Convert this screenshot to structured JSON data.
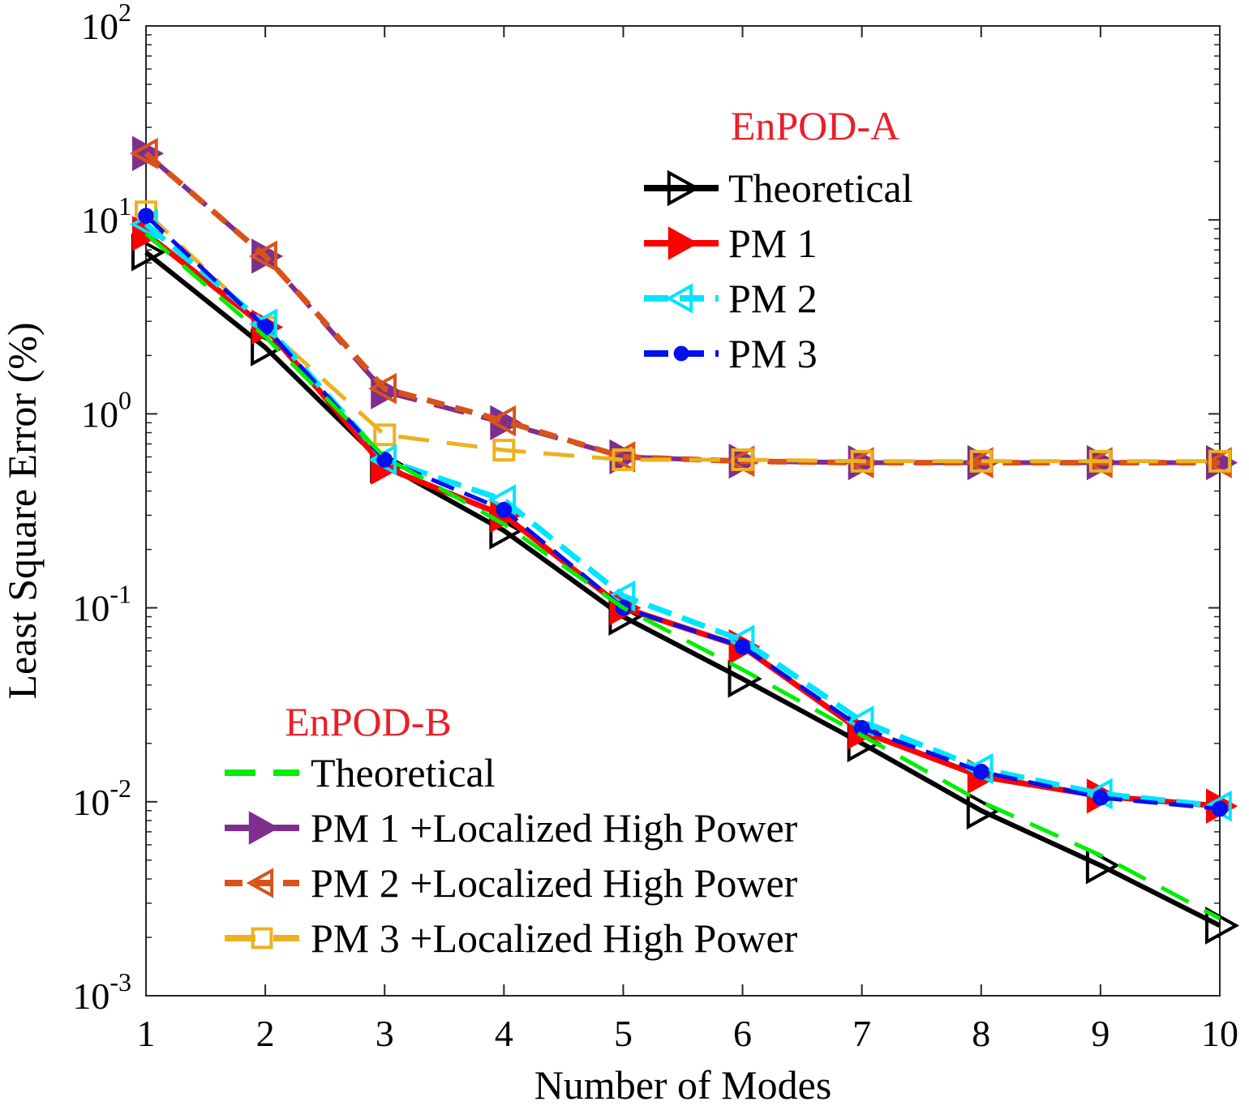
{
  "chart_data": {
    "type": "line",
    "xlabel": "Number of Modes",
    "ylabel": "Least Square Error (%)",
    "xlim": [
      1,
      10
    ],
    "ylim": [
      0.001,
      100
    ],
    "yscale": "log",
    "x": [
      1,
      2,
      3,
      4,
      5,
      6,
      7,
      8,
      9,
      10
    ],
    "x_ticks": [
      "1",
      "2",
      "3",
      "4",
      "5",
      "6",
      "7",
      "8",
      "9",
      "10"
    ],
    "y_ticks": [
      {
        "base": "10",
        "exp": "-3",
        "value": 0.001
      },
      {
        "base": "10",
        "exp": "-2",
        "value": 0.01
      },
      {
        "base": "10",
        "exp": "-1",
        "value": 0.1
      },
      {
        "base": "10",
        "exp": "0",
        "value": 1
      },
      {
        "base": "10",
        "exp": "1",
        "value": 10
      },
      {
        "base": "10",
        "exp": "2",
        "value": 100
      }
    ],
    "grid": false,
    "legend_groups": [
      {
        "title": "EnPOD-A",
        "placement": "top-right"
      },
      {
        "title": "EnPOD-B",
        "placement": "bottom-left"
      }
    ],
    "series": [
      {
        "name": "PM 1 +Localized High Power",
        "group": 1,
        "color": "#7e2f8e",
        "dash": "long",
        "marker": "tri-right",
        "values": [
          22,
          6.5,
          1.3,
          0.9,
          0.6,
          0.57,
          0.56,
          0.56,
          0.56,
          0.56
        ]
      },
      {
        "name": "PM 2 +Localized High Power",
        "group": 1,
        "color": "#d95319",
        "dash": "medium",
        "marker": "tri-left-open",
        "values": [
          22,
          6.5,
          1.35,
          0.92,
          0.6,
          0.57,
          0.56,
          0.56,
          0.56,
          0.56
        ]
      },
      {
        "name": "PM 3 +Localized High Power",
        "group": 1,
        "color": "#edb120",
        "dash": "long",
        "marker": "square-open",
        "values": [
          11,
          2.8,
          0.78,
          0.65,
          0.58,
          0.58,
          0.57,
          0.57,
          0.57,
          0.57
        ]
      },
      {
        "name": "Theoretical",
        "group": 0,
        "color": "#000000",
        "dash": "solid",
        "marker": "tri-right-open",
        "values": [
          6.8,
          2.2,
          0.55,
          0.25,
          0.09,
          0.043,
          0.02,
          0.009,
          0.0047,
          0.0023
        ]
      },
      {
        "name": "PM 1",
        "group": 0,
        "color": "#ff0000",
        "dash": "solid",
        "marker": "tri-right",
        "values": [
          8.5,
          2.8,
          0.53,
          0.3,
          0.1,
          0.063,
          0.023,
          0.0135,
          0.0107,
          0.0095
        ]
      },
      {
        "name": "PM 2",
        "group": 0,
        "color": "#00e5ff",
        "dash": "dash",
        "marker": "tri-left-open",
        "values": [
          9.5,
          2.9,
          0.58,
          0.36,
          0.115,
          0.068,
          0.026,
          0.0148,
          0.011,
          0.0095
        ]
      },
      {
        "name": "PM 3",
        "group": 0,
        "color": "#0010ee",
        "dash": "dash",
        "marker": "dot",
        "values": [
          10.5,
          2.8,
          0.58,
          0.32,
          0.1,
          0.063,
          0.024,
          0.0143,
          0.0105,
          0.0092
        ]
      },
      {
        "name": "Theoretical",
        "group": 1,
        "color": "#00ee00",
        "dash": "long",
        "marker": "none",
        "values": [
          8.5,
          2.5,
          0.6,
          0.27,
          0.1,
          0.048,
          0.022,
          0.01,
          0.0053,
          0.0025
        ]
      }
    ]
  }
}
